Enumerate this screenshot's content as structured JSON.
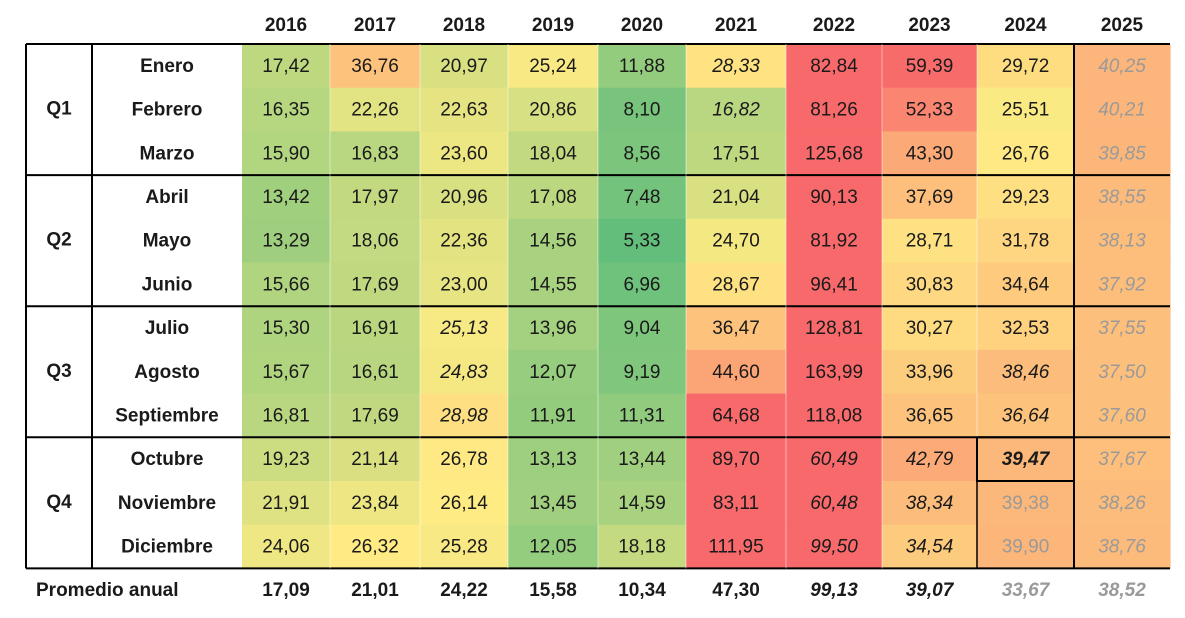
{
  "chart_data": {
    "type": "heatmap",
    "columns": [
      "2016",
      "2017",
      "2018",
      "2019",
      "2020",
      "2021",
      "2022",
      "2023",
      "2024",
      "2025"
    ],
    "quarters": [
      {
        "label": "Q1",
        "months": [
          "Enero",
          "Febrero",
          "Marzo"
        ]
      },
      {
        "label": "Q2",
        "months": [
          "Abril",
          "Mayo",
          "Junio"
        ]
      },
      {
        "label": "Q3",
        "months": [
          "Julio",
          "Agosto",
          "Septiembre"
        ]
      },
      {
        "label": "Q4",
        "months": [
          "Octubre",
          "Noviembre",
          "Diciembre"
        ]
      }
    ],
    "values": [
      [
        "17,42",
        "36,76",
        "20,97",
        "25,24",
        "11,88",
        "28,33",
        "82,84",
        "59,39",
        "29,72",
        "40,25"
      ],
      [
        "16,35",
        "22,26",
        "22,63",
        "20,86",
        "8,10",
        "16,82",
        "81,26",
        "52,33",
        "25,51",
        "40,21"
      ],
      [
        "15,90",
        "16,83",
        "23,60",
        "18,04",
        "8,56",
        "17,51",
        "125,68",
        "43,30",
        "26,76",
        "39,85"
      ],
      [
        "13,42",
        "17,97",
        "20,96",
        "17,08",
        "7,48",
        "21,04",
        "90,13",
        "37,69",
        "29,23",
        "38,55"
      ],
      [
        "13,29",
        "18,06",
        "22,36",
        "14,56",
        "5,33",
        "24,70",
        "81,92",
        "28,71",
        "31,78",
        "38,13"
      ],
      [
        "15,66",
        "17,69",
        "23,00",
        "14,55",
        "6,96",
        "28,67",
        "96,41",
        "30,83",
        "34,64",
        "37,92"
      ],
      [
        "15,30",
        "16,91",
        "25,13",
        "13,96",
        "9,04",
        "36,47",
        "128,81",
        "30,27",
        "32,53",
        "37,55"
      ],
      [
        "15,67",
        "16,61",
        "24,83",
        "12,07",
        "9,19",
        "44,60",
        "163,99",
        "33,96",
        "38,46",
        "37,50"
      ],
      [
        "16,81",
        "17,69",
        "28,98",
        "11,91",
        "11,31",
        "64,68",
        "118,08",
        "36,65",
        "36,64",
        "37,60"
      ],
      [
        "19,23",
        "21,14",
        "26,78",
        "13,13",
        "13,44",
        "89,70",
        "60,49",
        "42,79",
        "39,47",
        "37,67"
      ],
      [
        "21,91",
        "23,84",
        "26,14",
        "13,45",
        "14,59",
        "83,11",
        "60,48",
        "38,34",
        "39,38",
        "38,26"
      ],
      [
        "24,06",
        "26,32",
        "25,28",
        "12,05",
        "18,18",
        "111,95",
        "99,50",
        "34,54",
        "39,90",
        "38,76"
      ]
    ],
    "italic_cells": [
      [
        0,
        5
      ],
      [
        1,
        5
      ],
      [
        6,
        2
      ],
      [
        7,
        2
      ],
      [
        8,
        2
      ],
      [
        7,
        8
      ],
      [
        8,
        8
      ],
      [
        9,
        6
      ],
      [
        10,
        6
      ],
      [
        11,
        6
      ],
      [
        9,
        7
      ],
      [
        10,
        7
      ],
      [
        11,
        7
      ],
      [
        9,
        8
      ]
    ],
    "grey_cells": [
      [
        0,
        9
      ],
      [
        1,
        9
      ],
      [
        2,
        9
      ],
      [
        3,
        9
      ],
      [
        4,
        9
      ],
      [
        5,
        9
      ],
      [
        6,
        9
      ],
      [
        7,
        9
      ],
      [
        8,
        9
      ],
      [
        9,
        9
      ],
      [
        10,
        9
      ],
      [
        11,
        9
      ],
      [
        10,
        8
      ],
      [
        11,
        8
      ]
    ],
    "bold_cells": [
      [
        9,
        8
      ]
    ],
    "footer": {
      "label": "Promedio anual",
      "values": [
        "17,09",
        "21,01",
        "24,22",
        "15,58",
        "10,34",
        "47,30",
        "99,13",
        "39,07",
        "33,67",
        "38,52"
      ],
      "italic": [
        false,
        false,
        false,
        false,
        false,
        false,
        true,
        true,
        true,
        true
      ],
      "grey": [
        false,
        false,
        false,
        false,
        false,
        false,
        false,
        false,
        true,
        true
      ]
    },
    "color_scale": {
      "low": "#63be7b",
      "mid": "#ffeb84",
      "high": "#f8696b"
    }
  }
}
